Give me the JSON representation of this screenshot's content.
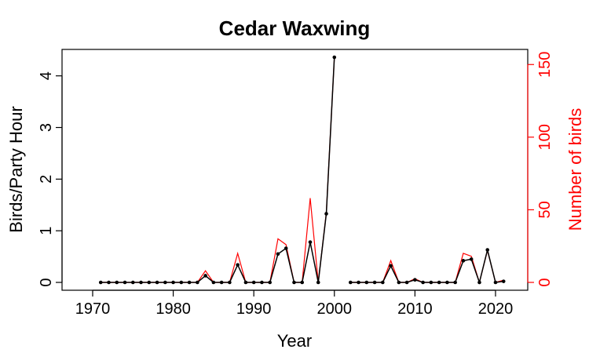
{
  "chart_data": {
    "type": "line",
    "title": "Cedar Waxwing",
    "xlabel": "Year",
    "ylabel": "Birds/Party Hour",
    "y2label": "Number of birds",
    "xlim": [
      1970,
      2022
    ],
    "ylim": [
      0,
      4.5
    ],
    "y2lim": [
      0,
      160
    ],
    "x_ticks": [
      1970,
      1980,
      1990,
      2000,
      2010,
      2020
    ],
    "y_ticks": [
      0,
      1,
      2,
      3,
      4
    ],
    "y2_ticks": [
      0,
      50,
      100,
      150
    ],
    "grid": false,
    "colors": {
      "birds_per_party_hour": "#000000",
      "number_of_birds": "#ff0000",
      "axis_right": "#ff0000"
    },
    "x": [
      1971,
      1972,
      1973,
      1974,
      1975,
      1976,
      1977,
      1978,
      1979,
      1980,
      1981,
      1982,
      1983,
      1984,
      1985,
      1986,
      1987,
      1988,
      1989,
      1990,
      1991,
      1992,
      1993,
      1994,
      1995,
      1996,
      1997,
      1998,
      1999,
      2000,
      2001,
      2002,
      2003,
      2004,
      2005,
      2006,
      2007,
      2008,
      2009,
      2010,
      2011,
      2012,
      2013,
      2014,
      2015,
      2016,
      2017,
      2018,
      2019,
      2020,
      2021
    ],
    "series": [
      {
        "axis": "left",
        "values": [
          0,
          0,
          0,
          0,
          0,
          0,
          0,
          0,
          0,
          0,
          0,
          0,
          0,
          0.13,
          0,
          0,
          0,
          0.34,
          0,
          0,
          0,
          0,
          0.55,
          0.66,
          0,
          0,
          0.78,
          0,
          1.33,
          4.36,
          null,
          0,
          0,
          0,
          0,
          0,
          0.32,
          0,
          0,
          0.05,
          0,
          0,
          0,
          0,
          0,
          0.42,
          0.45,
          0,
          0.63,
          0,
          0.02
        ],
        "markers": true
      },
      {
        "axis": "right",
        "values": [
          0,
          0,
          0,
          0,
          0,
          0,
          0,
          0,
          0,
          0,
          0,
          0,
          0,
          8,
          0,
          0,
          0,
          20,
          0,
          0,
          0,
          0,
          30,
          26,
          0,
          0,
          58,
          0,
          48,
          155,
          null,
          0,
          0,
          0,
          0,
          0,
          15,
          0,
          0,
          2.5,
          0,
          0,
          0,
          0,
          0,
          20,
          18,
          0,
          22,
          0,
          1.5
        ],
        "markers": false
      }
    ]
  }
}
